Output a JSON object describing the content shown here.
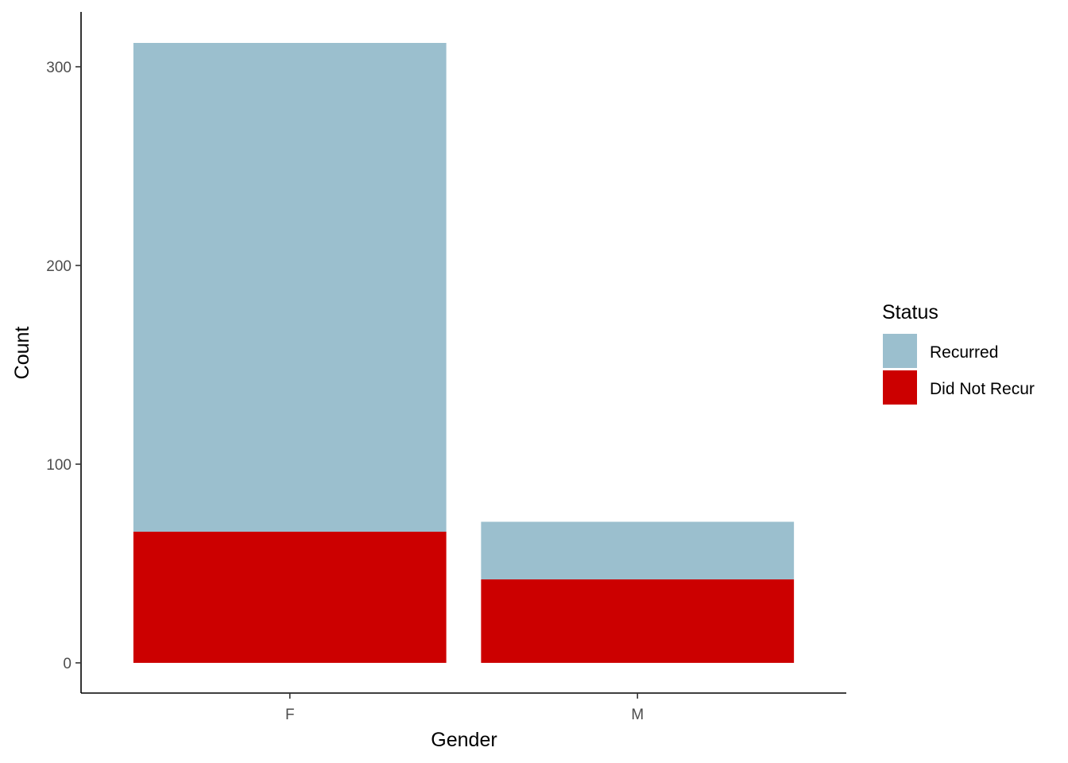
{
  "chart_data": {
    "type": "bar",
    "stacked": true,
    "categories": [
      "F",
      "M"
    ],
    "series": [
      {
        "name": "Did Not Recur",
        "values": [
          66,
          42
        ],
        "color": "#CC0000"
      },
      {
        "name": "Recurred",
        "values": [
          246,
          29
        ],
        "color": "#9BBFCE"
      }
    ],
    "title": "",
    "xlabel": "Gender",
    "ylabel": "Count",
    "ylim": [
      -15,
      328
    ],
    "yticks": [
      0,
      100,
      200,
      300
    ],
    "grid": false,
    "legend": {
      "title": "Status",
      "placement": "right",
      "entries": [
        {
          "label": "Recurred",
          "color": "#9BBFCE"
        },
        {
          "label": "Did Not Recur",
          "color": "#CC0000"
        }
      ]
    }
  }
}
